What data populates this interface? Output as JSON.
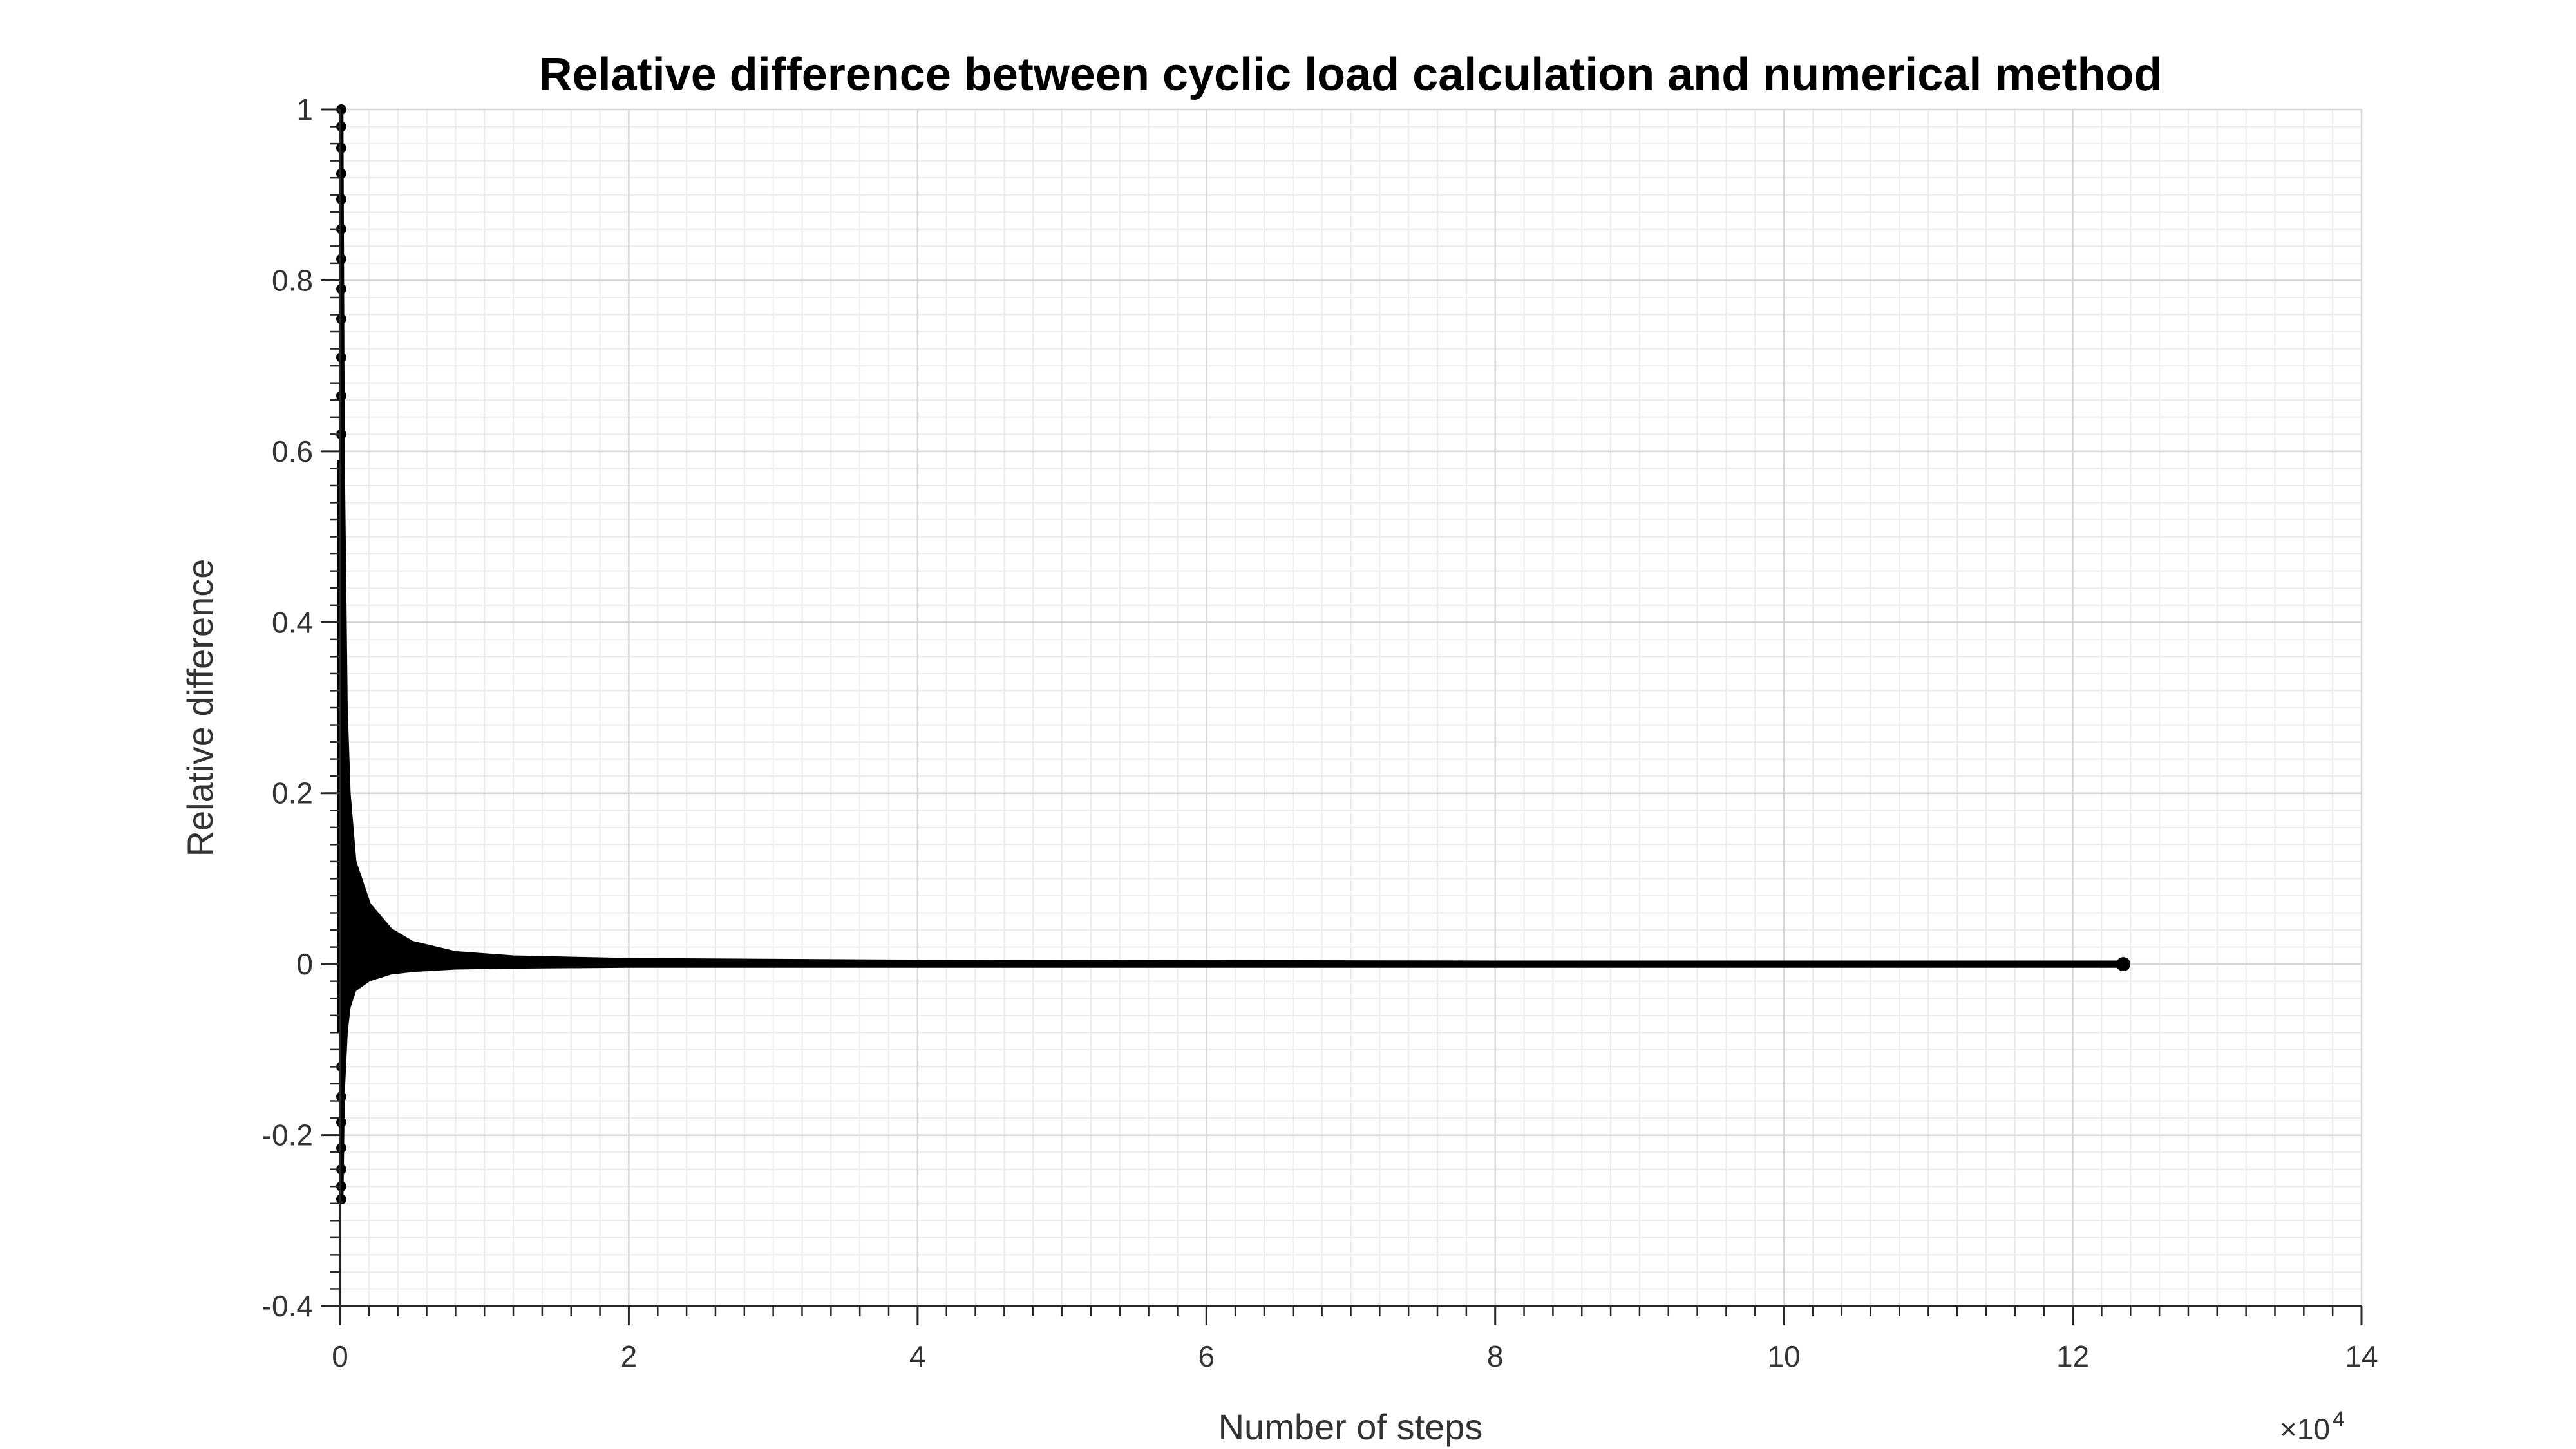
{
  "chart_data": {
    "type": "scatter",
    "title": "Relative difference between cyclic load calculation and numerical method",
    "xlabel": "Number of steps",
    "ylabel": "Relative difference",
    "x_exponent_base": "×10",
    "x_exponent_power": "4",
    "xlim": [
      0,
      14
    ],
    "ylim": [
      -0.4,
      1
    ],
    "xticks": [
      "0",
      "2",
      "4",
      "6",
      "8",
      "10",
      "12",
      "14"
    ],
    "yticks": [
      "-0.4",
      "-0.2",
      "0",
      "0.2",
      "0.4",
      "0.6",
      "0.8",
      "1"
    ],
    "grid": true,
    "minor_grid": true,
    "marker_color": "#000000",
    "series": [
      {
        "x_unit": "x10^4 steps",
        "x_range": [
          0,
          12.35
        ],
        "envelope_upper": [
          [
            0.01,
            1.0
          ],
          [
            0.02,
            0.59
          ],
          [
            0.04,
            0.3
          ],
          [
            0.06,
            0.2
          ],
          [
            0.1,
            0.12
          ],
          [
            0.2,
            0.07
          ],
          [
            0.35,
            0.04
          ],
          [
            0.5,
            0.025
          ],
          [
            0.8,
            0.013
          ],
          [
            1.2,
            0.008
          ],
          [
            2,
            0.005
          ],
          [
            4,
            0.003
          ],
          [
            8,
            0.002
          ],
          [
            12.35,
            0.002
          ]
        ],
        "envelope_lower": [
          [
            0.01,
            -0.28
          ],
          [
            0.02,
            -0.15
          ],
          [
            0.04,
            -0.08
          ],
          [
            0.06,
            -0.05
          ],
          [
            0.1,
            -0.03
          ],
          [
            0.2,
            -0.018
          ],
          [
            0.35,
            -0.01
          ],
          [
            0.5,
            -0.007
          ],
          [
            0.8,
            -0.004
          ],
          [
            1.2,
            -0.003
          ],
          [
            2,
            -0.002
          ],
          [
            4,
            -0.002
          ],
          [
            8,
            -0.002
          ],
          [
            12.35,
            -0.002
          ]
        ],
        "sparse_points_near_zero": [
          [
            0.0,
            1.0
          ],
          [
            0.0,
            0.98
          ],
          [
            0.0,
            0.955
          ],
          [
            0.0,
            0.925
          ],
          [
            0.0,
            0.895
          ],
          [
            0.0,
            0.86
          ],
          [
            0.0,
            0.825
          ],
          [
            0.0,
            0.79
          ],
          [
            0.0,
            0.755
          ],
          [
            0.0,
            0.71
          ],
          [
            0.0,
            0.665
          ],
          [
            0.0,
            0.62
          ],
          [
            0.0,
            -0.12
          ],
          [
            0.0,
            -0.155
          ],
          [
            0.0,
            -0.185
          ],
          [
            0.0,
            -0.215
          ],
          [
            0.0,
            -0.24
          ],
          [
            0.0,
            -0.26
          ],
          [
            0.0,
            -0.275
          ]
        ]
      }
    ]
  }
}
